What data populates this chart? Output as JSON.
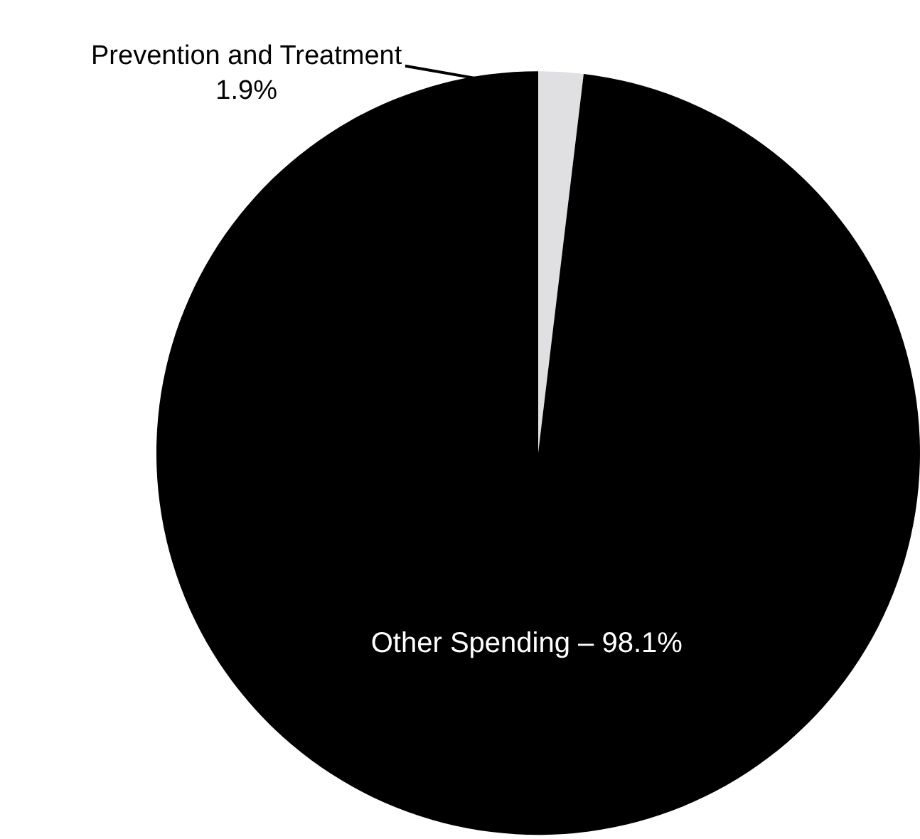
{
  "chart_data": {
    "type": "pie",
    "categories": [
      "Prevention and Treatment",
      "Other Spending"
    ],
    "values": [
      1.9,
      98.1
    ],
    "value_labels": [
      "1.9%",
      "98.1%"
    ],
    "colors": [
      "#e0e0e2",
      "#000000"
    ]
  }
}
